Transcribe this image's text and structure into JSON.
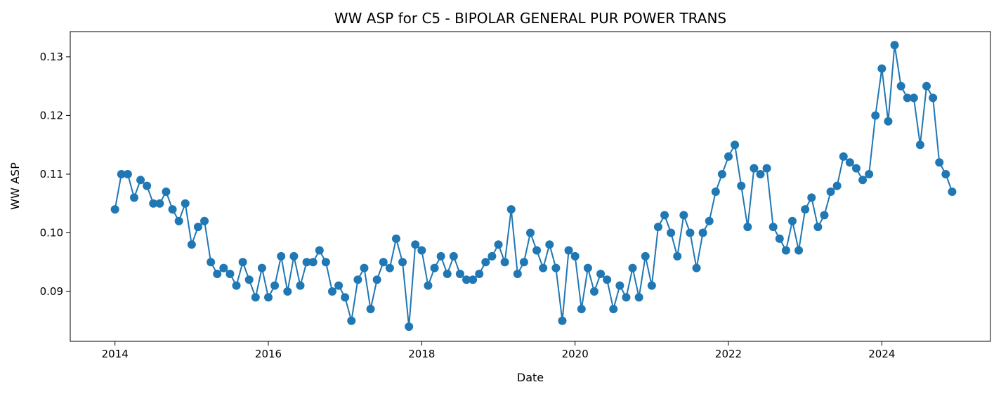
{
  "chart_data": {
    "type": "line",
    "title": "WW ASP for C5 - BIPOLAR GENERAL PUR POWER TRANS",
    "xlabel": "Date",
    "ylabel": "WW ASP",
    "x_ticks": [
      "2014",
      "2016",
      "2018",
      "2020",
      "2022",
      "2024"
    ],
    "y_ticks": [
      "0.09",
      "0.10",
      "0.11",
      "0.12",
      "0.13"
    ],
    "xlim": [
      "2013-06",
      "2025-06"
    ],
    "ylim": [
      0.0815,
      0.1343
    ],
    "grid": false,
    "marker": "circle",
    "color": "#1f77b4",
    "series": [
      {
        "x": [
          "2014-01",
          "2014-02",
          "2014-03",
          "2014-04",
          "2014-05",
          "2014-06",
          "2014-07",
          "2014-08",
          "2014-09",
          "2014-10",
          "2014-11",
          "2014-12",
          "2015-01",
          "2015-02",
          "2015-03",
          "2015-04",
          "2015-05",
          "2015-06",
          "2015-07",
          "2015-08",
          "2015-09",
          "2015-10",
          "2015-11",
          "2015-12",
          "2016-01",
          "2016-02",
          "2016-03",
          "2016-04",
          "2016-05",
          "2016-06",
          "2016-07",
          "2016-08",
          "2016-09",
          "2016-10",
          "2016-11",
          "2016-12",
          "2017-01",
          "2017-02",
          "2017-03",
          "2017-04",
          "2017-05",
          "2017-06",
          "2017-07",
          "2017-08",
          "2017-09",
          "2017-10",
          "2017-11",
          "2017-12",
          "2018-01",
          "2018-02",
          "2018-03",
          "2018-04",
          "2018-05",
          "2018-06",
          "2018-07",
          "2018-08",
          "2018-09",
          "2018-10",
          "2018-11",
          "2018-12",
          "2019-01",
          "2019-02",
          "2019-03",
          "2019-04",
          "2019-05",
          "2019-06",
          "2019-07",
          "2019-08",
          "2019-09",
          "2019-10",
          "2019-11",
          "2019-12",
          "2020-01",
          "2020-02",
          "2020-03",
          "2020-04",
          "2020-05",
          "2020-06",
          "2020-07",
          "2020-08",
          "2020-09",
          "2020-10",
          "2020-11",
          "2020-12",
          "2021-01",
          "2021-02",
          "2021-03",
          "2021-04",
          "2021-05",
          "2021-06",
          "2021-07",
          "2021-08",
          "2021-09",
          "2021-10",
          "2021-11",
          "2021-12",
          "2022-01",
          "2022-02",
          "2022-03",
          "2022-04",
          "2022-05",
          "2022-06",
          "2022-07",
          "2022-08",
          "2022-09",
          "2022-10",
          "2022-11",
          "2022-12",
          "2023-01",
          "2023-02",
          "2023-03",
          "2023-04",
          "2023-05",
          "2023-06",
          "2023-07",
          "2023-08",
          "2023-09",
          "2023-10",
          "2023-11",
          "2023-12",
          "2024-01",
          "2024-02",
          "2024-03",
          "2024-04",
          "2024-05",
          "2024-06",
          "2024-07",
          "2024-08",
          "2024-09",
          "2024-10",
          "2024-11",
          "2024-12"
        ],
        "values": [
          0.104,
          0.11,
          0.11,
          0.106,
          0.109,
          0.108,
          0.105,
          0.105,
          0.107,
          0.104,
          0.102,
          0.105,
          0.098,
          0.101,
          0.102,
          0.095,
          0.093,
          0.094,
          0.093,
          0.091,
          0.095,
          0.092,
          0.089,
          0.094,
          0.089,
          0.091,
          0.096,
          0.09,
          0.096,
          0.091,
          0.095,
          0.095,
          0.097,
          0.095,
          0.09,
          0.091,
          0.089,
          0.085,
          0.092,
          0.094,
          0.087,
          0.092,
          0.095,
          0.094,
          0.099,
          0.095,
          0.084,
          0.098,
          0.097,
          0.091,
          0.094,
          0.096,
          0.093,
          0.096,
          0.093,
          0.092,
          0.092,
          0.093,
          0.095,
          0.096,
          0.098,
          0.095,
          0.104,
          0.093,
          0.095,
          0.1,
          0.097,
          0.094,
          0.098,
          0.094,
          0.085,
          0.097,
          0.096,
          0.087,
          0.094,
          0.09,
          0.093,
          0.092,
          0.087,
          0.091,
          0.089,
          0.094,
          0.089,
          0.096,
          0.091,
          0.101,
          0.103,
          0.1,
          0.096,
          0.103,
          0.1,
          0.094,
          0.1,
          0.102,
          0.107,
          0.11,
          0.113,
          0.115,
          0.108,
          0.101,
          0.111,
          0.11,
          0.111,
          0.101,
          0.099,
          0.097,
          0.102,
          0.097,
          0.104,
          0.106,
          0.101,
          0.103,
          0.107,
          0.108,
          0.113,
          0.112,
          0.111,
          0.109,
          0.11,
          0.12,
          0.128,
          0.119,
          0.132,
          0.125,
          0.123,
          0.123,
          0.115,
          0.125,
          0.123,
          0.112,
          0.11,
          0.107
        ]
      }
    ]
  }
}
